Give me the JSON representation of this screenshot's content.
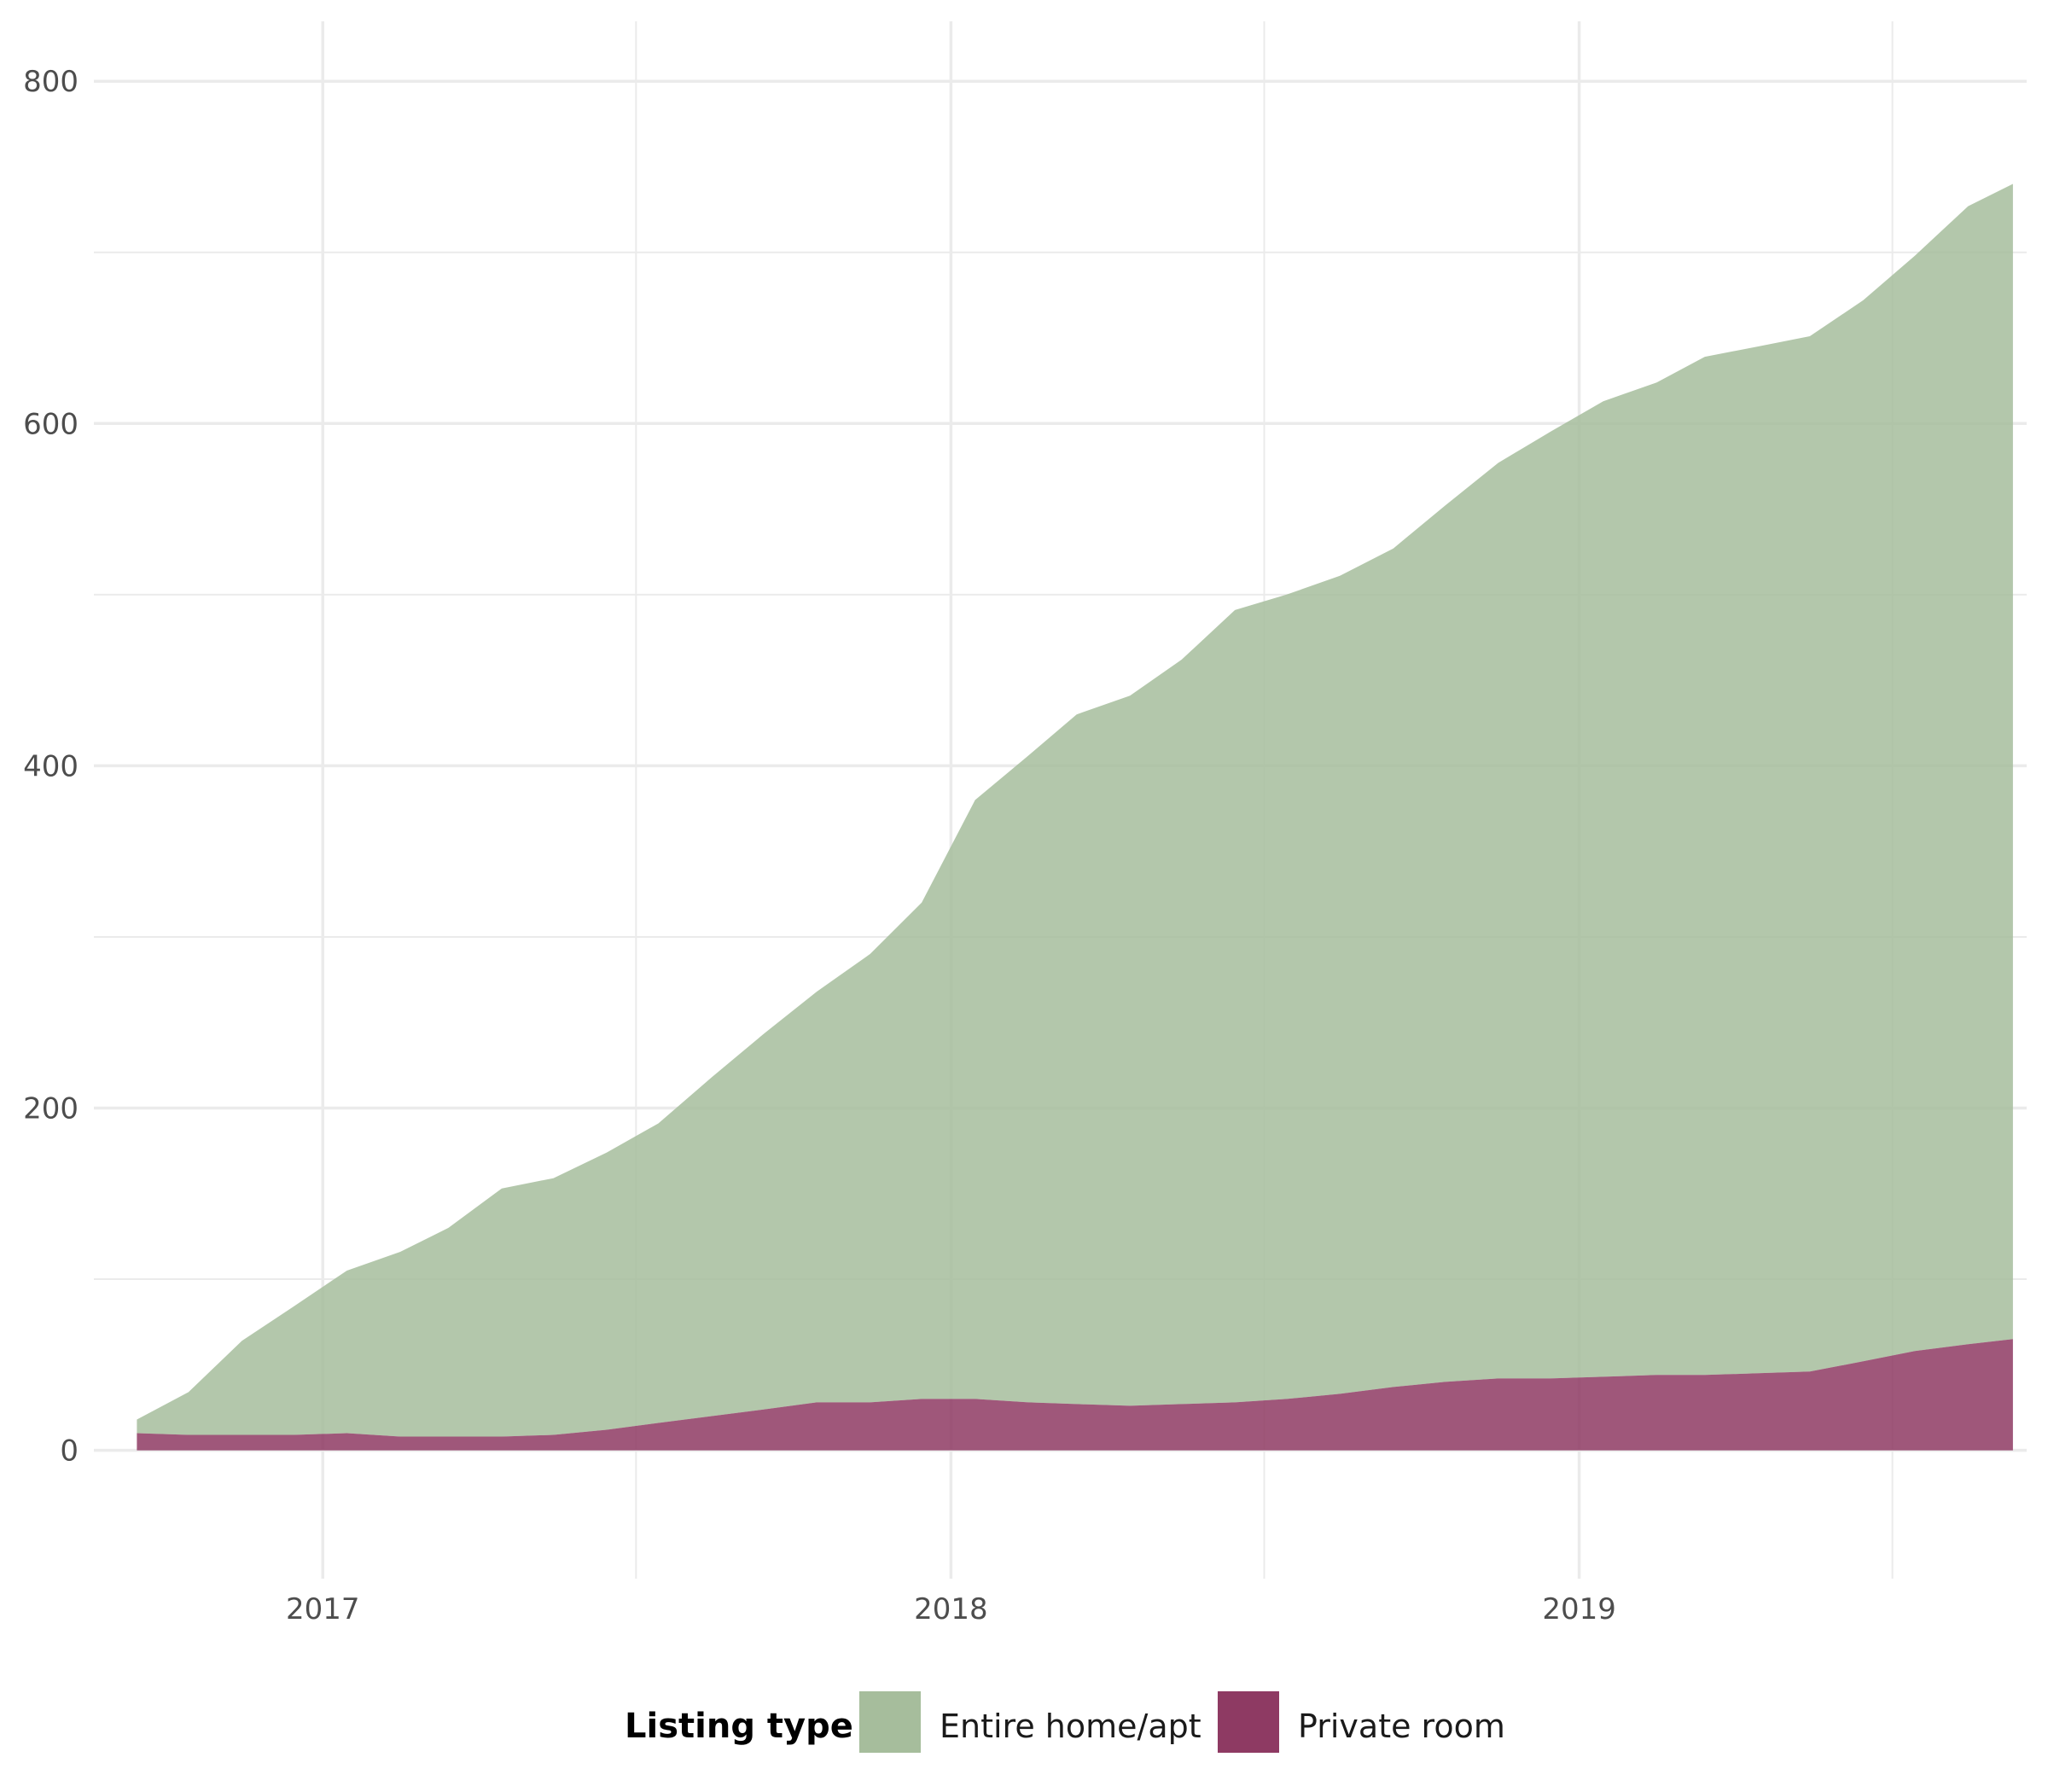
{
  "chart_data": {
    "type": "area",
    "stacked": true,
    "x_axis": {
      "scale": "time",
      "range": [
        "2016-08-21",
        "2019-09-18"
      ],
      "tick_labels": [
        "2017",
        "2018",
        "2019"
      ],
      "minor_ticks": [
        "2017-07-02",
        "2018-07-02",
        "2019-07-02"
      ]
    },
    "y_axis": {
      "range": [
        -75,
        835
      ],
      "tick_values": [
        0,
        200,
        400,
        600,
        800
      ],
      "tick_labels": [
        "0",
        "200",
        "400",
        "600",
        "800"
      ],
      "minor_ticks": [
        100,
        300,
        500,
        700
      ]
    },
    "grid": true,
    "legend": {
      "title": "Listing type",
      "position": "bottom",
      "entries": [
        "Entire home/apt",
        "Private room"
      ]
    },
    "series": [
      {
        "name": "Private room",
        "color": "#8e3a63",
        "points": [
          [
            "2016-09-15",
            10
          ],
          [
            "2016-10-15",
            9
          ],
          [
            "2016-11-15",
            9
          ],
          [
            "2016-12-15",
            9
          ],
          [
            "2017-01-15",
            10
          ],
          [
            "2017-02-15",
            8
          ],
          [
            "2017-03-15",
            8
          ],
          [
            "2017-04-15",
            8
          ],
          [
            "2017-05-15",
            9
          ],
          [
            "2017-06-15",
            12
          ],
          [
            "2017-07-15",
            16
          ],
          [
            "2017-08-15",
            20
          ],
          [
            "2017-09-15",
            24
          ],
          [
            "2017-10-15",
            28
          ],
          [
            "2017-11-15",
            28
          ],
          [
            "2017-12-15",
            30
          ],
          [
            "2018-01-15",
            30
          ],
          [
            "2018-02-15",
            28
          ],
          [
            "2018-03-15",
            27
          ],
          [
            "2018-04-15",
            26
          ],
          [
            "2018-05-15",
            27
          ],
          [
            "2018-06-15",
            28
          ],
          [
            "2018-07-15",
            30
          ],
          [
            "2018-08-15",
            33
          ],
          [
            "2018-09-15",
            37
          ],
          [
            "2018-10-15",
            40
          ],
          [
            "2018-11-15",
            42
          ],
          [
            "2018-12-15",
            42
          ],
          [
            "2019-01-15",
            43
          ],
          [
            "2019-02-15",
            44
          ],
          [
            "2019-03-15",
            44
          ],
          [
            "2019-04-15",
            45
          ],
          [
            "2019-05-15",
            46
          ],
          [
            "2019-06-15",
            52
          ],
          [
            "2019-07-15",
            58
          ],
          [
            "2019-08-15",
            62
          ],
          [
            "2019-09-10",
            65
          ]
        ]
      },
      {
        "name": "Entire home/apt",
        "color": "#a6bd9c",
        "points": [
          [
            "2016-09-15",
            8
          ],
          [
            "2016-10-15",
            25
          ],
          [
            "2016-11-15",
            55
          ],
          [
            "2016-12-15",
            75
          ],
          [
            "2017-01-15",
            95
          ],
          [
            "2017-02-15",
            108
          ],
          [
            "2017-03-15",
            122
          ],
          [
            "2017-04-15",
            145
          ],
          [
            "2017-05-15",
            150
          ],
          [
            "2017-06-15",
            162
          ],
          [
            "2017-07-15",
            175
          ],
          [
            "2017-08-15",
            198
          ],
          [
            "2017-09-15",
            220
          ],
          [
            "2017-10-15",
            240
          ],
          [
            "2017-11-15",
            262
          ],
          [
            "2017-12-15",
            290
          ],
          [
            "2018-01-15",
            350
          ],
          [
            "2018-02-15",
            378
          ],
          [
            "2018-03-15",
            403
          ],
          [
            "2018-04-15",
            415
          ],
          [
            "2018-05-15",
            435
          ],
          [
            "2018-06-15",
            463
          ],
          [
            "2018-07-15",
            470
          ],
          [
            "2018-08-15",
            478
          ],
          [
            "2018-09-15",
            490
          ],
          [
            "2018-10-15",
            512
          ],
          [
            "2018-11-15",
            535
          ],
          [
            "2018-12-15",
            553
          ],
          [
            "2019-01-15",
            570
          ],
          [
            "2019-02-15",
            580
          ],
          [
            "2019-03-15",
            595
          ],
          [
            "2019-04-15",
            600
          ],
          [
            "2019-05-15",
            605
          ],
          [
            "2019-06-15",
            620
          ],
          [
            "2019-07-15",
            640
          ],
          [
            "2019-08-15",
            665
          ],
          [
            "2019-09-10",
            675
          ]
        ]
      }
    ]
  }
}
